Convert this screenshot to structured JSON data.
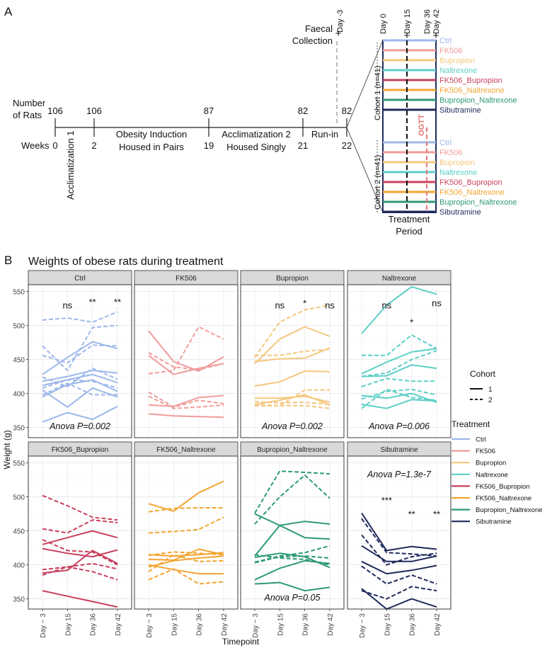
{
  "panel_a": {
    "label": "A",
    "number_of_rats_label": "Number\nof Rats",
    "weeks_label": "Weeks",
    "rat_counts": [
      "106",
      "106",
      "87",
      "82",
      "82"
    ],
    "week_ticks": [
      "0",
      "2",
      "19",
      "21",
      "22"
    ],
    "phases": [
      "Acclimatization 1",
      "Obesity Induction\nHoused in Pairs",
      "Acclimatization 2\nHoused Singly",
      "Run-in"
    ],
    "faecal_label": "Faecal\nCollection",
    "day_minus3": "Day -3",
    "treatment_days": [
      "Day 0",
      "Day 15",
      "Day 36",
      "Day 42"
    ],
    "cohort1_label": "Cohort 1  (n=41)",
    "cohort2_label": "Cohort 2  (n=41)",
    "ogtt_label": "OGTT",
    "treatment_period_label": "Treatment\nPeriod",
    "groups": [
      {
        "name": "Ctrl",
        "color": "#9db7ea"
      },
      {
        "name": "FK506",
        "color": "#f09c9a"
      },
      {
        "name": "Bupropion",
        "color": "#f5c77e"
      },
      {
        "name": "Naltrexone",
        "color": "#5ccfc6"
      },
      {
        "name": "FK506_Bupropion",
        "color": "#c9405e"
      },
      {
        "name": "FK506_Naltrexone",
        "color": "#f2a531"
      },
      {
        "name": "Bupropion_Naltrexone",
        "color": "#2e9a74"
      },
      {
        "name": "Sibutramine",
        "color": "#1f2a5c"
      }
    ]
  },
  "chart_data": {
    "type": "line",
    "label": "B",
    "title": "Weights of obese rats during treatment",
    "xlabel": "Timepoint",
    "ylabel": "Weight (g)",
    "categories": [
      "Day − 3",
      "Day 15",
      "Day 36",
      "Day 42"
    ],
    "ylim": [
      335,
      560
    ],
    "yticks": [
      350,
      400,
      450,
      500,
      550
    ],
    "legend": {
      "cohort_title": "Cohort",
      "cohort_entries": [
        {
          "label": "1",
          "style": "solid"
        },
        {
          "label": "2",
          "style": "dashed"
        }
      ],
      "treatment_title": "Treatment"
    },
    "panels": [
      {
        "name": "Ctrl",
        "color": "#9db7ea",
        "anova": "Anova P=0.002",
        "anova_pos": "bottom",
        "sig": [
          "ns",
          "**",
          "**"
        ],
        "sig_y": [
          525,
          530,
          530
        ],
        "series": [
          {
            "cohort": 1,
            "values": [
              358,
              372,
              362,
              381
            ]
          },
          {
            "cohort": 1,
            "values": [
              405,
              380,
              408,
              395
            ]
          },
          {
            "cohort": 1,
            "values": [
              395,
              413,
              420,
              403
            ]
          },
          {
            "cohort": 1,
            "values": [
              412,
              420,
              428,
              416
            ]
          },
          {
            "cohort": 1,
            "values": [
              418,
              425,
              434,
              430
            ]
          },
          {
            "cohort": 1,
            "values": [
              428,
              453,
              476,
              466
            ]
          },
          {
            "cohort": 2,
            "values": [
              508,
              511,
              505,
              520
            ]
          },
          {
            "cohort": 2,
            "values": [
              470,
              434,
              497,
              500
            ]
          },
          {
            "cohort": 2,
            "values": [
              456,
              445,
              471,
              470
            ]
          },
          {
            "cohort": 2,
            "values": [
              424,
              410,
              437,
              421
            ]
          },
          {
            "cohort": 2,
            "values": [
              408,
              420,
              418,
              408
            ]
          },
          {
            "cohort": 2,
            "values": [
              398,
              415,
              398,
              398
            ]
          }
        ]
      },
      {
        "name": "FK506",
        "color": "#f09c9a",
        "anova": "",
        "anova_pos": "bottom",
        "sig": [],
        "sig_y": [],
        "series": [
          {
            "cohort": 1,
            "values": [
              492,
              447,
              433,
              454
            ]
          },
          {
            "cohort": 1,
            "values": [
              456,
              428,
              437,
              444
            ]
          },
          {
            "cohort": 1,
            "values": [
              383,
              381,
              394,
              397
            ]
          },
          {
            "cohort": 1,
            "values": [
              370,
              367,
              366,
              365
            ]
          },
          {
            "cohort": 2,
            "values": [
              429,
              434,
              498,
              480
            ]
          },
          {
            "cohort": 2,
            "values": [
              460,
              439,
              435,
              444
            ]
          },
          {
            "cohort": 2,
            "values": [
              402,
              380,
              390,
              385
            ]
          },
          {
            "cohort": 2,
            "values": [
              396,
              378,
              380,
              383
            ]
          }
        ]
      },
      {
        "name": "Bupropion",
        "color": "#f5c77e",
        "anova": "Anova P=0.002",
        "anova_pos": "bottom",
        "sig": [
          "ns",
          "*",
          "ns"
        ],
        "sig_y": [
          525,
          528,
          525
        ],
        "series": [
          {
            "cohort": 1,
            "values": [
              444,
              480,
              498,
              484
            ]
          },
          {
            "cohort": 1,
            "values": [
              447,
              451,
              452,
              467
            ]
          },
          {
            "cohort": 1,
            "values": [
              411,
              417,
              433,
              432
            ]
          },
          {
            "cohort": 1,
            "values": [
              393,
              393,
              396,
              387
            ]
          },
          {
            "cohort": 1,
            "values": [
              384,
              390,
              398,
              383
            ]
          },
          {
            "cohort": 2,
            "values": [
              453,
              505,
              523,
              530
            ]
          },
          {
            "cohort": 2,
            "values": [
              456,
              456,
              462,
              465
            ]
          },
          {
            "cohort": 2,
            "values": [
              384,
              382,
              405,
              405
            ]
          },
          {
            "cohort": 2,
            "values": [
              388,
              386,
              387,
              384
            ]
          },
          {
            "cohort": 2,
            "values": [
              382,
              382,
              382,
              378
            ]
          }
        ]
      },
      {
        "name": "Naltrexone",
        "color": "#5ccfc6",
        "anova": "Anova P=0.006",
        "anova_pos": "bottom",
        "sig": [
          "ns",
          "*",
          "ns"
        ],
        "sig_y": [
          525,
          500,
          528
        ],
        "series": [
          {
            "cohort": 1,
            "values": [
              488,
              530,
              557,
              546
            ]
          },
          {
            "cohort": 1,
            "values": [
              429,
              446,
              461,
              466
            ]
          },
          {
            "cohort": 1,
            "values": [
              425,
              426,
              442,
              437
            ]
          },
          {
            "cohort": 1,
            "values": [
              397,
              393,
              400,
              387
            ]
          },
          {
            "cohort": 1,
            "values": [
              384,
              378,
              391,
              389
            ]
          },
          {
            "cohort": 2,
            "values": [
              456,
              456,
              486,
              466
            ]
          },
          {
            "cohort": 2,
            "values": [
              425,
              430,
              450,
              463
            ]
          },
          {
            "cohort": 2,
            "values": [
              410,
              422,
              418,
              418
            ]
          },
          {
            "cohort": 2,
            "values": [
              392,
              403,
              406,
              398
            ]
          },
          {
            "cohort": 2,
            "values": [
              378,
              406,
              394,
              390
            ]
          }
        ]
      },
      {
        "name": "FK506_Bupropion",
        "color": "#c9405e",
        "anova": "",
        "anova_pos": "bottom",
        "sig": [],
        "sig_y": [],
        "series": [
          {
            "cohort": 1,
            "values": [
              362,
              354,
              346,
              338
            ]
          },
          {
            "cohort": 1,
            "values": [
              388,
              392,
              421,
              402
            ]
          },
          {
            "cohort": 1,
            "values": [
              424,
              417,
              412,
              422
            ]
          },
          {
            "cohort": 1,
            "values": [
              430,
              440,
              450,
              440
            ]
          },
          {
            "cohort": 2,
            "values": [
              502,
              487,
              470,
              466
            ]
          },
          {
            "cohort": 2,
            "values": [
              453,
              447,
              466,
              462
            ]
          },
          {
            "cohort": 2,
            "values": [
              437,
              421,
              419,
              400
            ]
          },
          {
            "cohort": 2,
            "values": [
              393,
              397,
              402,
              394
            ]
          },
          {
            "cohort": 2,
            "values": [
              385,
              397,
              390,
              378
            ]
          }
        ]
      },
      {
        "name": "FK506_Naltrexone",
        "color": "#f2a531",
        "anova": "",
        "anova_pos": "bottom",
        "sig": [],
        "sig_y": [],
        "series": [
          {
            "cohort": 1,
            "values": [
              490,
              479,
              506,
              523
            ]
          },
          {
            "cohort": 1,
            "values": [
              415,
              413,
              415,
              418
            ]
          },
          {
            "cohort": 1,
            "values": [
              408,
              407,
              423,
              415
            ]
          },
          {
            "cohort": 1,
            "values": [
              397,
              406,
              410,
              413
            ]
          },
          {
            "cohort": 1,
            "values": [
              400,
              393,
              387,
              387
            ]
          },
          {
            "cohort": 2,
            "values": [
              478,
              483,
              484,
              484
            ]
          },
          {
            "cohort": 2,
            "values": [
              447,
              449,
              452,
              470
            ]
          },
          {
            "cohort": 2,
            "values": [
              414,
              419,
              417,
              415
            ]
          },
          {
            "cohort": 2,
            "values": [
              390,
              415,
              405,
              406
            ]
          },
          {
            "cohort": 2,
            "values": [
              378,
              394,
              372,
              375
            ]
          }
        ]
      },
      {
        "name": "Bupropion_Naltrexone",
        "color": "#2e9a74",
        "anova": "Anova P=0.05",
        "anova_pos": "bottom",
        "sig": [],
        "sig_y": [],
        "series": [
          {
            "cohort": 1,
            "values": [
              475,
              458,
              464,
              460
            ]
          },
          {
            "cohort": 1,
            "values": [
              413,
              458,
              440,
              438
            ]
          },
          {
            "cohort": 1,
            "values": [
              411,
              417,
              412,
              396
            ]
          },
          {
            "cohort": 1,
            "values": [
              378,
              395,
              406,
              402
            ]
          },
          {
            "cohort": 1,
            "values": [
              372,
              374,
              362,
              367
            ]
          },
          {
            "cohort": 2,
            "values": [
              476,
              538,
              536,
              534
            ]
          },
          {
            "cohort": 2,
            "values": [
              460,
              500,
              532,
              498
            ]
          },
          {
            "cohort": 2,
            "values": [
              404,
              413,
              418,
              428
            ]
          },
          {
            "cohort": 2,
            "values": [
              403,
              412,
              413,
              410
            ]
          },
          {
            "cohort": 2,
            "values": [
              415,
              410,
              408,
              400
            ]
          }
        ]
      },
      {
        "name": "Sibutramine",
        "color": "#1f2a5c",
        "anova": "Anova P=1.3e-7",
        "anova_pos": "top",
        "sig": [
          "***",
          "**",
          "**"
        ],
        "sig_y": [
          490,
          470,
          470
        ],
        "series": [
          {
            "cohort": 1,
            "values": [
              476,
              421,
              427,
              423
            ]
          },
          {
            "cohort": 1,
            "values": [
              428,
              405,
              405,
              413
            ]
          },
          {
            "cohort": 1,
            "values": [
              405,
              387,
              392,
              399
            ]
          },
          {
            "cohort": 1,
            "values": [
              365,
              335,
              350,
              338
            ]
          },
          {
            "cohort": 2,
            "values": [
              468,
              418,
              416,
              413
            ]
          },
          {
            "cohort": 2,
            "values": [
              444,
              400,
              412,
              417
            ]
          },
          {
            "cohort": 2,
            "values": [
              398,
              372,
              385,
              372
            ]
          },
          {
            "cohort": 2,
            "values": [
              362,
              350,
              368,
              362
            ]
          }
        ]
      }
    ]
  }
}
